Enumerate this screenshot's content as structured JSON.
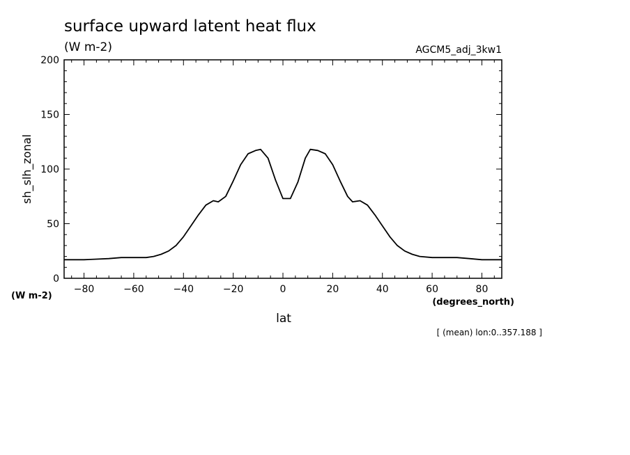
{
  "chart_data": {
    "type": "line",
    "title": "surface upward latent heat flux",
    "title_units": "(W m-2)",
    "run_label": "AGCM5_adj_3kw1",
    "xlabel": "lat",
    "xunits": "(degrees_north)",
    "ylabel": "sh_slh_zonal",
    "yunits": "(W m-2)",
    "footnote": "[ (mean) lon:0..357.188 ]",
    "xlim": [
      -88,
      88
    ],
    "ylim": [
      0,
      200
    ],
    "xticks": [
      -80,
      -60,
      -40,
      -20,
      0,
      20,
      40,
      60,
      80
    ],
    "yticks": [
      0,
      50,
      100,
      150,
      200
    ],
    "grid": false,
    "line_color": "#000000",
    "series": [
      {
        "x": [
          -88,
          -80,
          -75,
          -70,
          -65,
          -60,
          -55,
          -52,
          -49,
          -46,
          -43,
          -40,
          -37,
          -34,
          -31,
          -28,
          -26,
          -23,
          -20,
          -17,
          -14,
          -11,
          -9,
          -6,
          -3,
          0,
          3,
          6,
          9,
          11,
          14,
          17,
          20,
          23,
          26,
          28,
          31,
          34,
          37,
          40,
          43,
          46,
          49,
          52,
          55,
          60,
          65,
          70,
          75,
          80,
          88
        ],
        "y": [
          17,
          17,
          17.5,
          18,
          19,
          19,
          19,
          20,
          22,
          25,
          30,
          38,
          48,
          58,
          67,
          71,
          70,
          75,
          89,
          104,
          114,
          117,
          118,
          110,
          90,
          73,
          73,
          88,
          110,
          118,
          117,
          114,
          104,
          89,
          75,
          70,
          71,
          67,
          58,
          48,
          38,
          30,
          25,
          22,
          20,
          19,
          19,
          19,
          18,
          17,
          17
        ]
      }
    ]
  }
}
